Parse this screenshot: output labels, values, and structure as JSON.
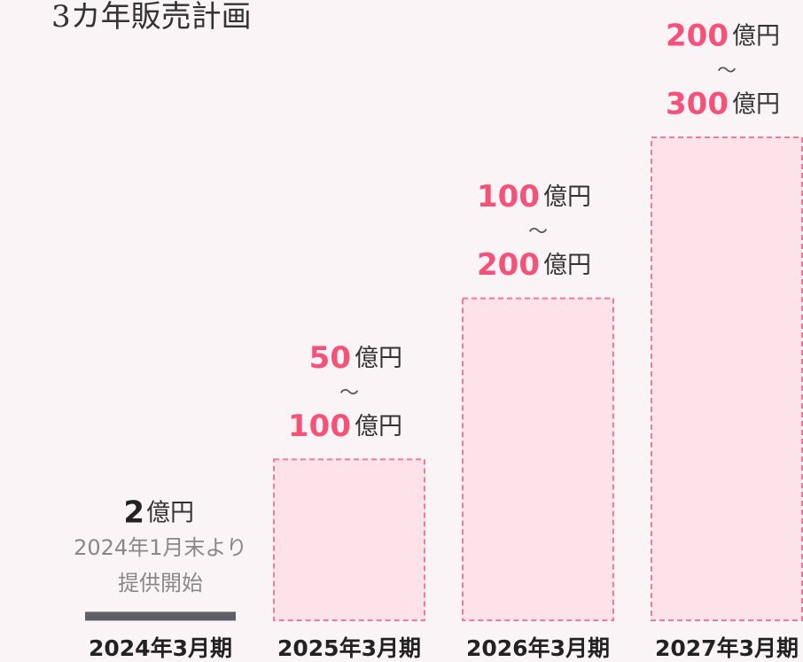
{
  "chart_data": {
    "type": "range_bar",
    "title": "3カ年販売計画",
    "categories": [
      "2024年3月期",
      "2025年3月期",
      "2026年3月期",
      "2027年3月期"
    ],
    "values": [
      2,
      50,
      100,
      200
    ],
    "values_high": [
      null,
      100,
      200,
      300
    ],
    "unit": "億円",
    "range_sep": "～",
    "note": [
      "2024年1月末より",
      "提供開始"
    ],
    "color": "#fde3e9",
    "edge_color": "#f07a98",
    "label_color": "#f5527a",
    "single_color": "#5f5f66"
  }
}
